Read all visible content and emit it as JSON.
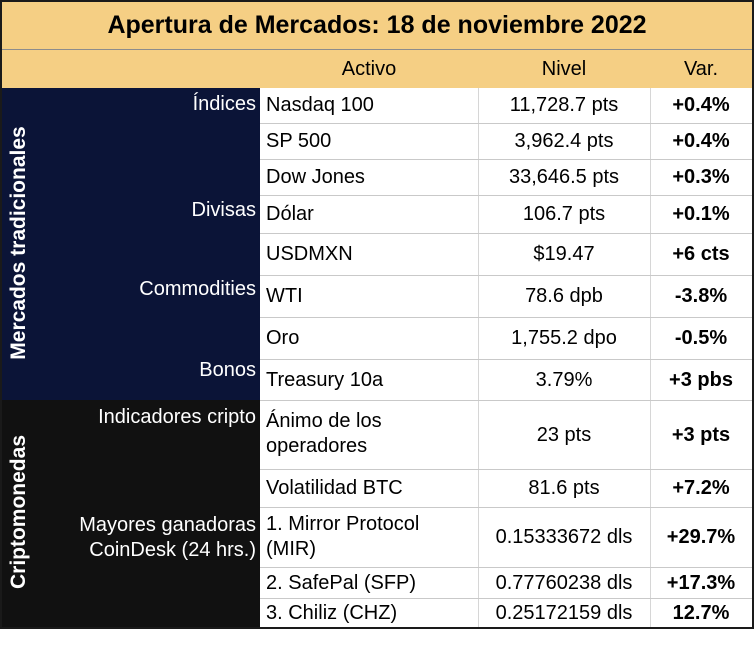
{
  "title": "Apertura de Mercados: 18 de noviembre 2022",
  "headers": {
    "activo": "Activo",
    "nivel": "Nivel",
    "var": "Var."
  },
  "sections": {
    "traditional": "Mercados tradicionales",
    "crypto": "Criptomonedas"
  },
  "categories": {
    "indices": "Índices",
    "divisas": "Divisas",
    "commodities": "Commodities",
    "bonos": "Bonos",
    "indicadores": "Indicadores cripto",
    "ganadoras_1": "Mayores ganadoras",
    "ganadoras_2": "CoinDesk (24 hrs.)"
  },
  "rows": [
    {
      "activo": "Nasdaq 100",
      "nivel": "11,728.7 pts",
      "var": "+0.4%"
    },
    {
      "activo": "SP 500",
      "nivel": "3,962.4 pts",
      "var": "+0.4%"
    },
    {
      "activo": "Dow Jones",
      "nivel": "33,646.5 pts",
      "var": "+0.3%"
    },
    {
      "activo": "Dólar",
      "nivel": "106.7 pts",
      "var": "+0.1%"
    },
    {
      "activo": "USDMXN",
      "nivel": "$19.47",
      "var": "+6 cts"
    },
    {
      "activo": "WTI",
      "nivel": "78.6 dpb",
      "var": "-3.8%"
    },
    {
      "activo": "Oro",
      "nivel": "1,755.2 dpo",
      "var": "-0.5%"
    },
    {
      "activo": "Treasury 10a",
      "nivel": "3.79%",
      "var": "+3 pbs"
    },
    {
      "activo_1": "Ánimo de los",
      "activo_2": "operadores",
      "nivel": "23 pts",
      "var": "+3 pts"
    },
    {
      "activo": "Volatilidad BTC",
      "nivel": "81.6 pts",
      "var": "+7.2%"
    },
    {
      "activo_1": "1. Mirror Protocol",
      "activo_2": "(MIR)",
      "nivel": "0.15333672 dls",
      "var": "+29.7%"
    },
    {
      "activo": "2. SafePal (SFP)",
      "nivel": "0.77760238 dls",
      "var": "+17.3%"
    },
    {
      "activo": "3. Chiliz (CHZ)",
      "nivel": "0.25172159 dls",
      "var": "12.7%"
    }
  ]
}
